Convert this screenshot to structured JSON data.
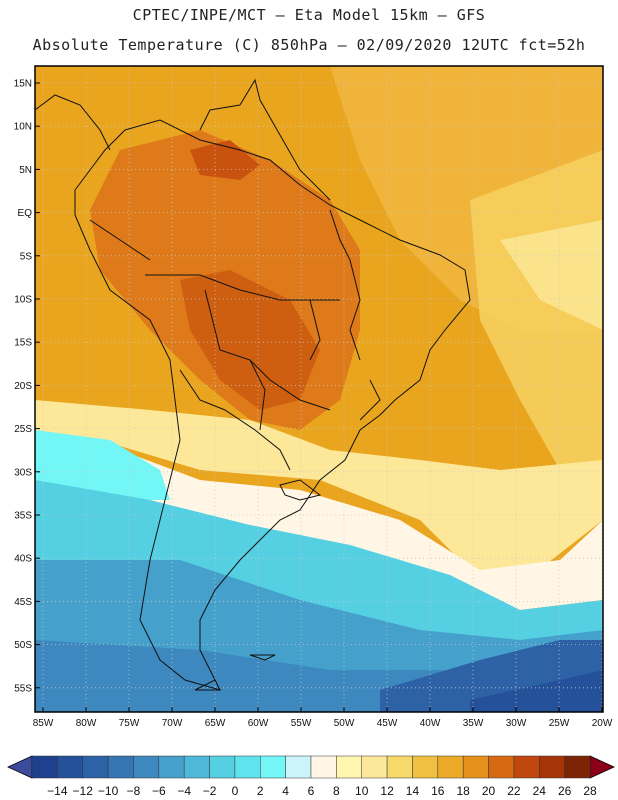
{
  "header": {
    "line1": "CPTEC/INPE/MCT –  Eta Model 15km – GFS",
    "line2": "Absolute Temperature (C) 850hPa – 02/09/2020 12UTC fct=52h"
  },
  "axes": {
    "lat_labels": [
      "15N",
      "10N",
      "5N",
      "EQ",
      "5S",
      "10S",
      "15S",
      "20S",
      "25S",
      "30S",
      "35S",
      "40S",
      "45S",
      "50S",
      "55S"
    ],
    "lon_labels": [
      "85W",
      "80W",
      "75W",
      "70W",
      "65W",
      "60W",
      "55W",
      "50W",
      "45W",
      "40W",
      "35W",
      "30W",
      "25W",
      "20W"
    ]
  },
  "colorbar": {
    "labels": [
      "-14",
      "-12",
      "-10",
      "-8",
      "-6",
      "-4",
      "-2",
      "0",
      "2",
      "4",
      "6",
      "8",
      "10",
      "12",
      "14",
      "16",
      "18",
      "20",
      "22",
      "24",
      "26",
      "28"
    ],
    "colors": [
      "#1f3f8f",
      "#25509a",
      "#2d62a6",
      "#3575b2",
      "#3d88bf",
      "#45a0cb",
      "#4db8d8",
      "#55cfe2",
      "#5fe3ec",
      "#73f6f6",
      "#ccf4fb",
      "#fff6e6",
      "#fff6b0",
      "#fde89a",
      "#f7d86a",
      "#f0c040",
      "#eda928",
      "#e6901c",
      "#d66a14",
      "#c0480e",
      "#a53508",
      "#7d2406"
    ],
    "below_color": "#3b4c9c",
    "above_color": "#8b0018"
  }
}
